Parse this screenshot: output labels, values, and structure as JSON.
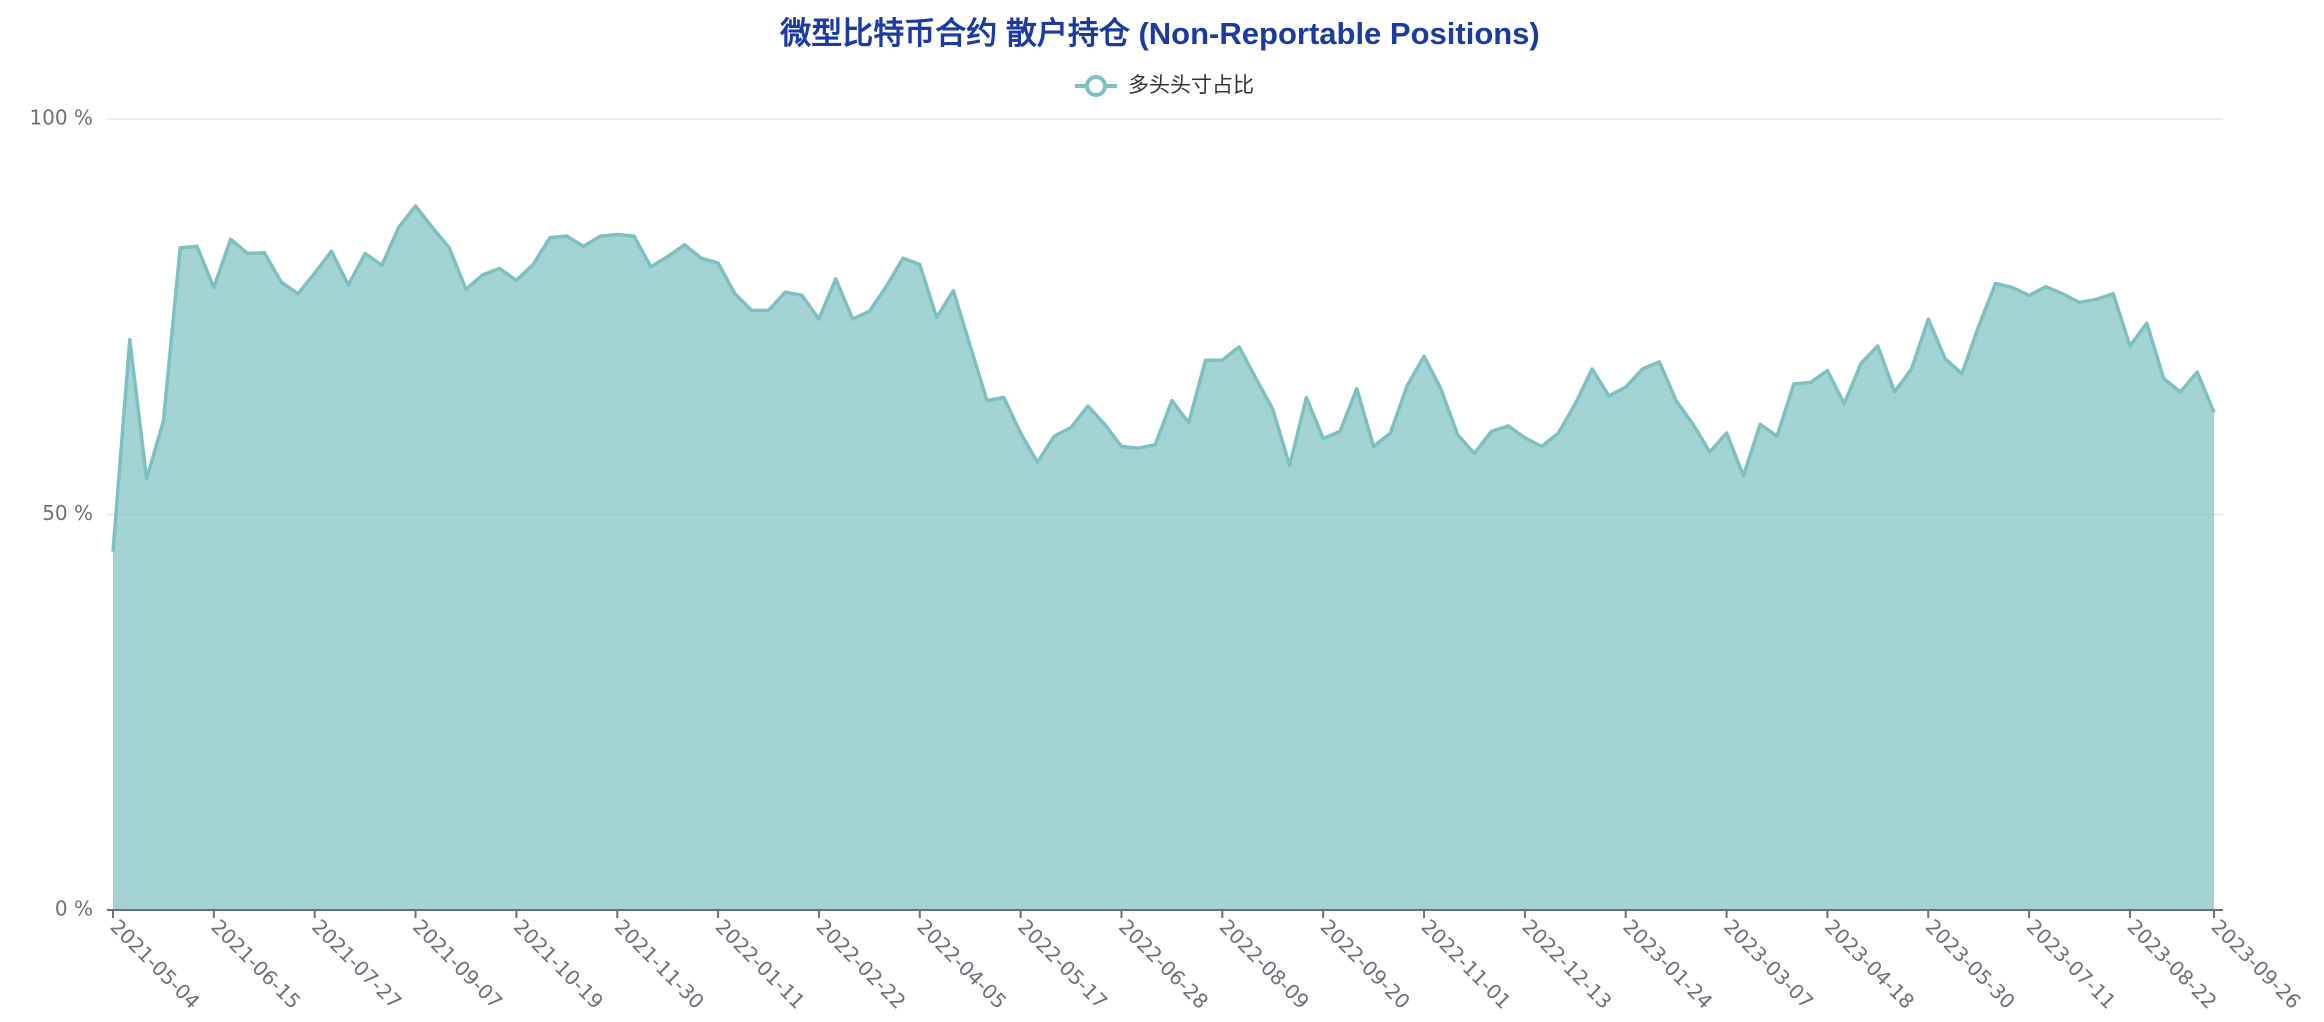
{
  "chart_data": {
    "type": "area",
    "title": "微型比特币合约 散户持仓 (Non-Reportable Positions)",
    "categories": [
      "2021-05-04",
      null,
      null,
      null,
      null,
      null,
      "2021-06-15",
      null,
      null,
      null,
      null,
      null,
      "2021-07-27",
      null,
      null,
      null,
      null,
      null,
      "2021-09-07",
      null,
      null,
      null,
      null,
      null,
      "2021-10-19",
      null,
      null,
      null,
      null,
      null,
      "2021-11-30",
      null,
      null,
      null,
      null,
      null,
      "2022-01-11",
      null,
      null,
      null,
      null,
      null,
      "2022-02-22",
      null,
      null,
      null,
      null,
      null,
      "2022-04-05",
      null,
      null,
      null,
      null,
      null,
      "2022-05-17",
      null,
      null,
      null,
      null,
      null,
      "2022-06-28",
      null,
      null,
      null,
      null,
      null,
      "2022-08-09",
      null,
      null,
      null,
      null,
      null,
      "2022-09-20",
      null,
      null,
      null,
      null,
      null,
      "2022-11-01",
      null,
      null,
      null,
      null,
      null,
      "2022-12-13",
      null,
      null,
      null,
      null,
      null,
      "2023-01-24",
      null,
      null,
      null,
      null,
      null,
      "2023-03-07",
      null,
      null,
      null,
      null,
      null,
      "2023-04-18",
      null,
      null,
      null,
      null,
      null,
      "2023-05-30",
      null,
      null,
      null,
      null,
      null,
      "2023-07-11",
      null,
      null,
      null,
      null,
      null,
      "2023-08-22",
      null,
      null,
      null,
      null,
      "2023-09-26"
    ],
    "series": [
      {
        "name": "多头头寸占比",
        "color": "#7ec0c0",
        "values": [
          45.3,
          72.1,
          54.5,
          61.8,
          83.7,
          83.9,
          78.7,
          84.8,
          83.0,
          83.1,
          79.4,
          77.9,
          80.5,
          83.3,
          79.0,
          83.0,
          81.5,
          86.3,
          89.0,
          86.3,
          83.7,
          78.5,
          80.3,
          81.1,
          79.6,
          81.6,
          85.0,
          85.2,
          83.9,
          85.2,
          85.4,
          85.2,
          81.3,
          82.6,
          84.1,
          82.4,
          81.8,
          77.9,
          75.8,
          75.8,
          78.1,
          77.7,
          74.7,
          79.8,
          74.7,
          75.7,
          78.8,
          82.4,
          81.6,
          74.9,
          78.3,
          71.3,
          64.4,
          64.8,
          60.3,
          56.6,
          59.9,
          61.0,
          63.7,
          61.4,
          58.6,
          58.4,
          58.8,
          64.4,
          61.6,
          69.5,
          69.5,
          71.2,
          67.2,
          63.3,
          56.2,
          64.8,
          59.6,
          60.5,
          65.9,
          58.6,
          60.3,
          66.3,
          70.0,
          65.9,
          60.1,
          57.7,
          60.5,
          61.2,
          59.7,
          58.6,
          60.3,
          64.0,
          68.4,
          65.0,
          66.1,
          68.4,
          69.3,
          64.4,
          61.4,
          57.9,
          60.3,
          54.9,
          61.4,
          59.9,
          66.5,
          66.7,
          68.2,
          64.0,
          69.1,
          71.3,
          65.5,
          68.4,
          74.7,
          69.7,
          67.8,
          73.8,
          79.2,
          78.7,
          77.7,
          78.8,
          77.9,
          76.8,
          77.2,
          77.9,
          71.3,
          74.2,
          67.2,
          65.5,
          68.0,
          62.9
        ]
      }
    ],
    "ylim": [
      0,
      100
    ],
    "yticks": [
      {
        "value": 0,
        "label": "0 %"
      },
      {
        "value": 50,
        "label": "50 %"
      },
      {
        "value": 100,
        "label": "100 %"
      }
    ],
    "grid": true
  }
}
